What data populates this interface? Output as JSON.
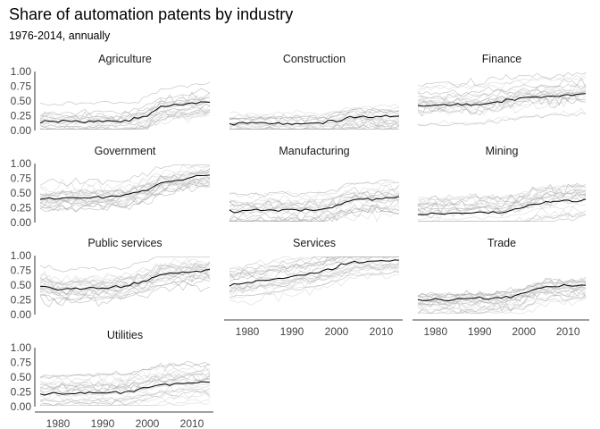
{
  "chart_data": {
    "type": "line",
    "title": "Share of automation patents by industry",
    "subtitle": "1976-2014, annually",
    "xlabel": "",
    "ylabel": "",
    "xlim": [
      1976,
      2014
    ],
    "ylim": [
      0,
      1
    ],
    "x_ticks": [
      "1980",
      "1990",
      "2000",
      "2010"
    ],
    "y_ticks": [
      "0.00",
      "0.25",
      "0.50",
      "0.75",
      "1.00"
    ],
    "grid": false,
    "legend": "none",
    "line_color": "#000000",
    "facets": [
      {
        "name": "Agriculture",
        "trend": {
          "x": [
            1976,
            1995,
            2000,
            2003,
            2014
          ],
          "y": [
            0.15,
            0.16,
            0.25,
            0.4,
            0.5
          ]
        }
      },
      {
        "name": "Construction",
        "trend": {
          "x": [
            1976,
            1995,
            2000,
            2003,
            2014
          ],
          "y": [
            0.12,
            0.12,
            0.16,
            0.22,
            0.25
          ]
        }
      },
      {
        "name": "Finance",
        "trend": {
          "x": [
            1976,
            1990,
            2000,
            2014
          ],
          "y": [
            0.42,
            0.45,
            0.55,
            0.62
          ]
        }
      },
      {
        "name": "Government",
        "trend": {
          "x": [
            1976,
            1995,
            2000,
            2003,
            2014
          ],
          "y": [
            0.4,
            0.45,
            0.55,
            0.68,
            0.8
          ]
        }
      },
      {
        "name": "Manufacturing",
        "trend": {
          "x": [
            1976,
            1995,
            2000,
            2003,
            2014
          ],
          "y": [
            0.2,
            0.22,
            0.28,
            0.38,
            0.42
          ]
        }
      },
      {
        "name": "Mining",
        "trend": {
          "x": [
            1976,
            1995,
            2000,
            2003,
            2014
          ],
          "y": [
            0.15,
            0.17,
            0.24,
            0.33,
            0.38
          ]
        }
      },
      {
        "name": "Public services",
        "trend": {
          "x": [
            1976,
            1980,
            1995,
            2000,
            2003,
            2014
          ],
          "y": [
            0.5,
            0.42,
            0.48,
            0.58,
            0.68,
            0.75
          ]
        }
      },
      {
        "name": "Services",
        "trend": {
          "x": [
            1976,
            1995,
            2000,
            2003,
            2014
          ],
          "y": [
            0.5,
            0.7,
            0.8,
            0.88,
            0.92
          ]
        }
      },
      {
        "name": "Trade",
        "trend": {
          "x": [
            1976,
            1995,
            2000,
            2003,
            2014
          ],
          "y": [
            0.25,
            0.28,
            0.35,
            0.45,
            0.5
          ]
        }
      },
      {
        "name": "Utilities",
        "trend": {
          "x": [
            1976,
            1995,
            2000,
            2003,
            2014
          ],
          "y": [
            0.22,
            0.25,
            0.32,
            0.38,
            0.42
          ]
        }
      }
    ]
  }
}
